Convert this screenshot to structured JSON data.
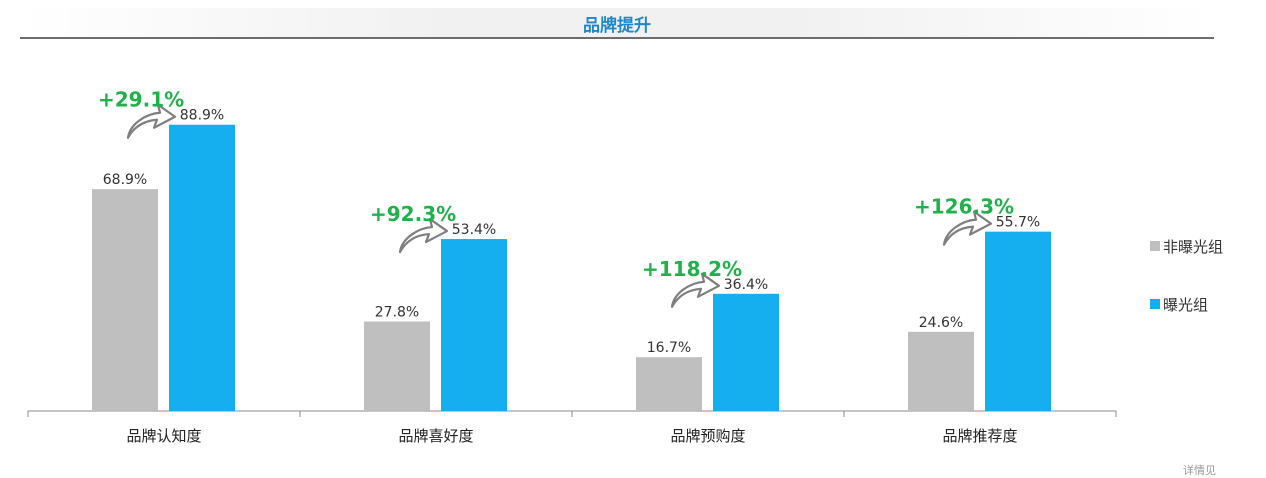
{
  "header": {
    "title": "品牌提升"
  },
  "chart_data": {
    "type": "bar",
    "categories": [
      "品牌认知度",
      "品牌喜好度",
      "品牌预购度",
      "品牌推荐度"
    ],
    "series": [
      {
        "name": "非曝光组",
        "color": "#bfbfbf",
        "values": [
          68.9,
          27.8,
          16.7,
          24.6
        ],
        "labels": [
          "68.9%",
          "27.8%",
          "16.7%",
          "24.6%"
        ]
      },
      {
        "name": "曝光组",
        "color": "#15aeef",
        "values": [
          88.9,
          53.4,
          36.4,
          55.7
        ],
        "labels": [
          "88.9%",
          "53.4%",
          "36.4%",
          "55.7%"
        ]
      }
    ],
    "annotations": [
      "+29.1%",
      "+92.3%",
      "+118.2%",
      "+126.3%"
    ],
    "annotation_color": "#21b14b",
    "ylim": [
      0,
      100
    ],
    "grid": false,
    "legend_position": "right"
  },
  "footer": {
    "note": "详情见"
  }
}
